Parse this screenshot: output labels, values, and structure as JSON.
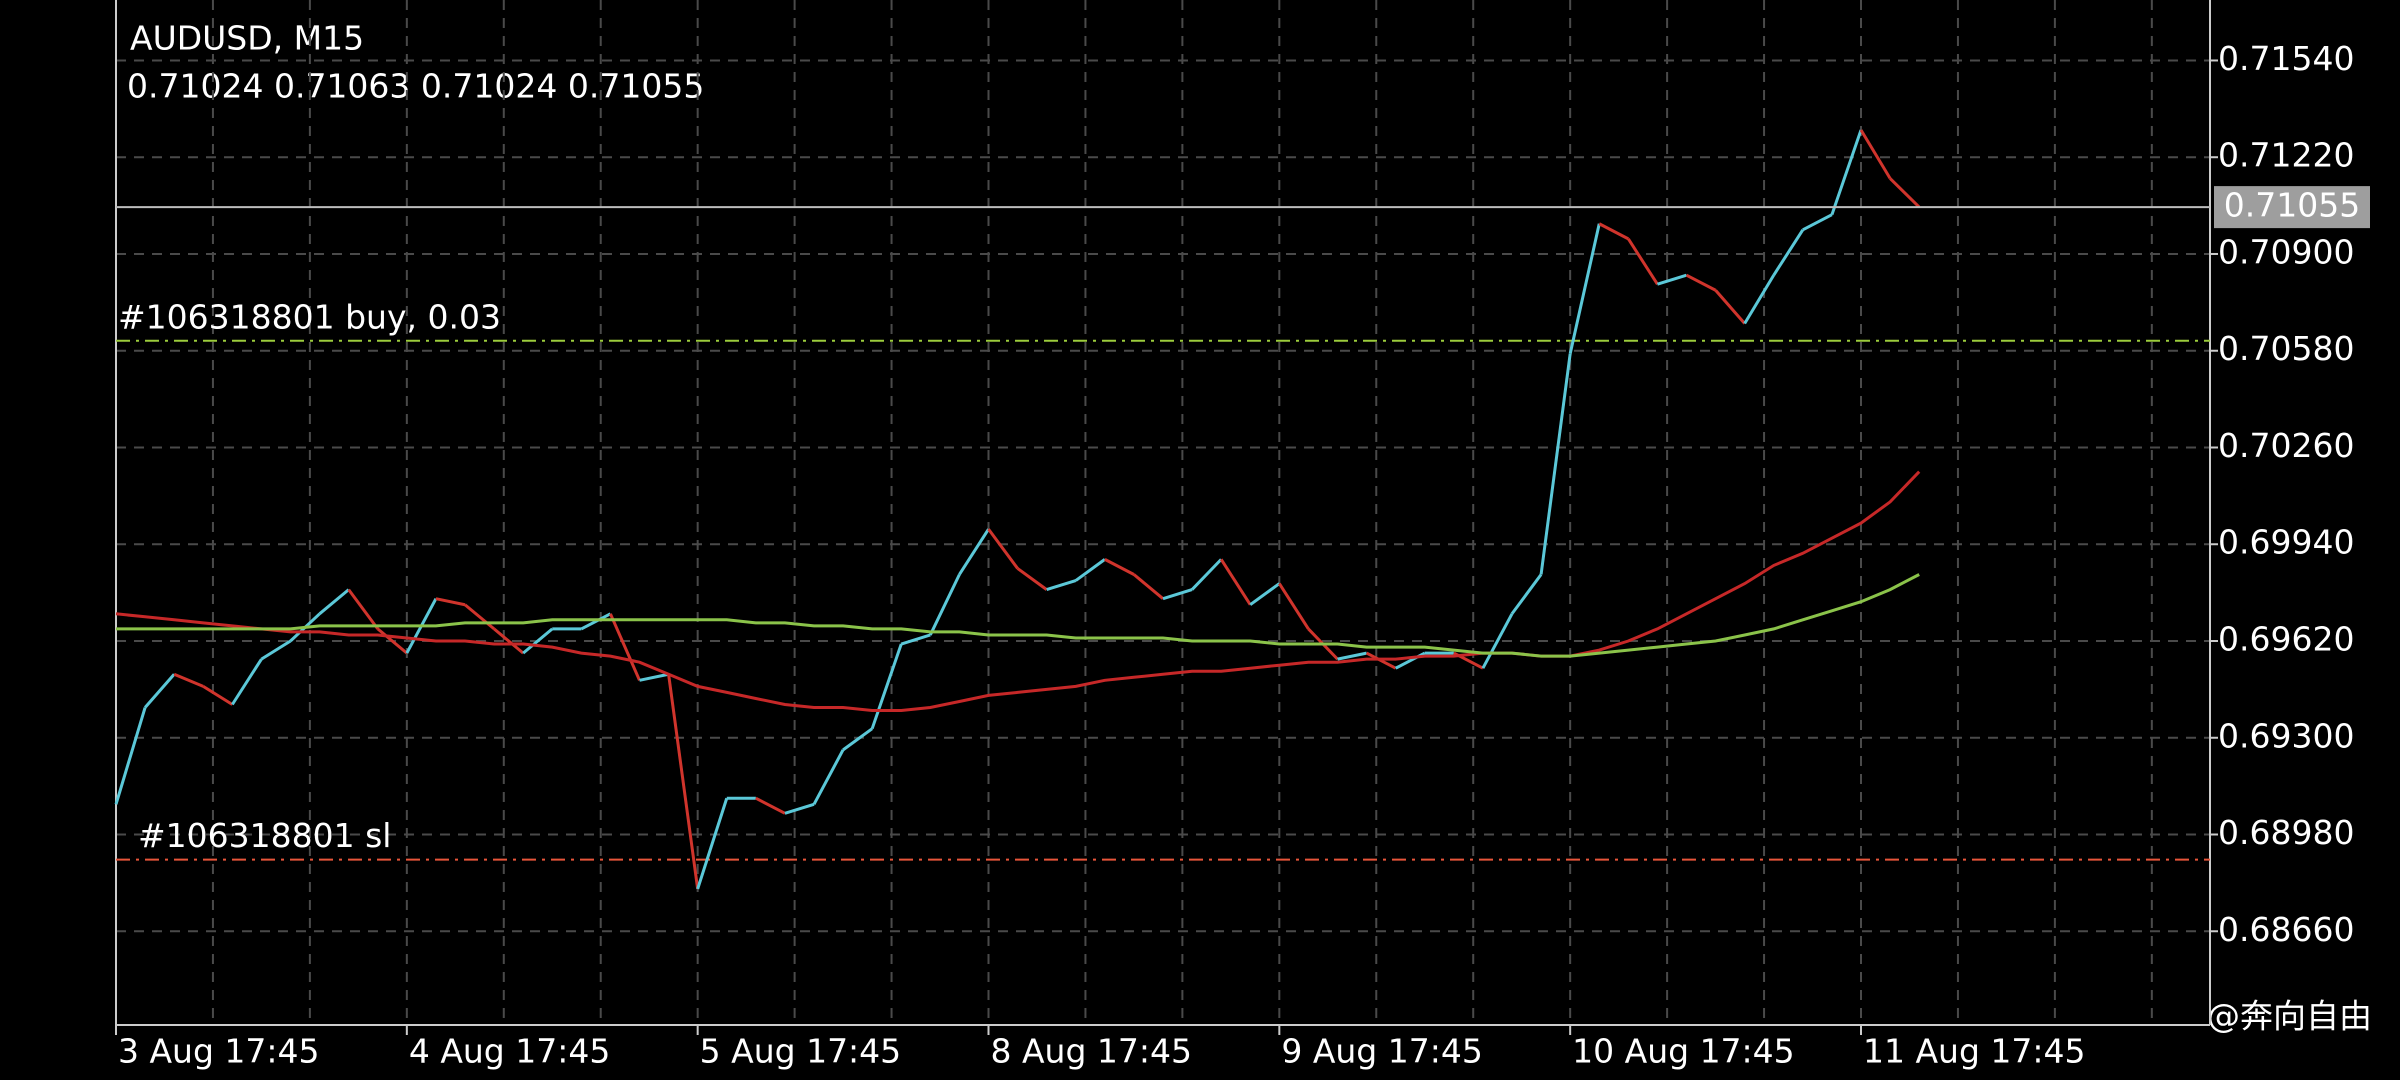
{
  "chart_data": {
    "type": "line",
    "title": "AUDUSD, M15",
    "subtitle": "0.71024 0.71063 0.71024 0.71055",
    "categories": [
      "3 Aug 17:45",
      null,
      null,
      null,
      null,
      null,
      null,
      null,
      null,
      null,
      "4 Aug 17:45",
      null,
      null,
      null,
      null,
      null,
      null,
      null,
      null,
      null,
      "5 Aug 17:45",
      null,
      null,
      null,
      null,
      null,
      null,
      null,
      null,
      null,
      "8 Aug 17:45",
      null,
      null,
      null,
      null,
      null,
      null,
      null,
      null,
      null,
      "9 Aug 17:45",
      null,
      null,
      null,
      null,
      null,
      null,
      null,
      null,
      null,
      "10 Aug 17:45",
      null,
      null,
      null,
      null,
      null,
      null,
      null,
      null,
      null,
      "11 Aug 17:45",
      null,
      null,
      null,
      null,
      null,
      null,
      null,
      null,
      null,
      null,
      null,
      null
    ],
    "series": [
      {
        "up_color": "#5bc8d8",
        "down_color": "#d0342c",
        "values": [
          0.6908,
          0.694,
          0.6951,
          0.6947,
          0.6941,
          0.6956,
          0.6962,
          0.6971,
          0.6979,
          0.6966,
          0.6958,
          0.6976,
          0.6974,
          0.6966,
          0.6958,
          0.6966,
          0.6966,
          0.6971,
          0.6949,
          0.6951,
          0.688,
          0.691,
          0.691,
          0.6905,
          0.6908,
          0.6926,
          0.6933,
          0.6961,
          0.6964,
          0.6984,
          0.6999,
          0.6986,
          0.6979,
          0.6982,
          0.6989,
          0.6984,
          0.6976,
          0.6979,
          0.6989,
          0.6974,
          0.6981,
          0.6966,
          0.6956,
          0.6958,
          0.6953,
          0.6958,
          0.6958,
          0.6953,
          0.6971,
          0.6984,
          0.7057,
          0.71,
          0.7095,
          0.708,
          0.7083,
          0.7078,
          0.7067,
          0.7083,
          0.7098,
          0.7103,
          0.7131,
          0.7115,
          0.71055,
          null,
          null,
          null,
          null,
          null,
          null,
          null,
          null,
          null,
          null
        ]
      },
      {
        "color": "#c62828",
        "values": [
          0.6971,
          0.697,
          0.6969,
          0.6968,
          0.6967,
          0.6966,
          0.6965,
          0.6965,
          0.6964,
          0.6964,
          0.6963,
          0.6962,
          0.6962,
          0.6961,
          0.6961,
          0.696,
          0.6958,
          0.6957,
          0.6955,
          0.6951,
          0.6947,
          0.6945,
          0.6943,
          0.6941,
          0.694,
          0.694,
          0.6939,
          0.6939,
          0.694,
          0.6942,
          0.6944,
          0.6945,
          0.6946,
          0.6947,
          0.6949,
          0.695,
          0.6951,
          0.6952,
          0.6952,
          0.6953,
          0.6954,
          0.6955,
          0.6955,
          0.6956,
          0.6956,
          0.6957,
          0.6957,
          0.6958,
          0.6958,
          0.6957,
          0.6957,
          0.6959,
          0.6962,
          0.6966,
          0.6971,
          0.6976,
          0.6981,
          0.6987,
          0.6991,
          0.6996,
          0.7001,
          0.7008,
          0.7018,
          null,
          null,
          null,
          null,
          null,
          null,
          null,
          null,
          null,
          null
        ]
      },
      {
        "color": "#8bc34a",
        "values": [
          0.6966,
          0.6966,
          0.6966,
          0.6966,
          0.6966,
          0.6966,
          0.6966,
          0.6967,
          0.6967,
          0.6967,
          0.6967,
          0.6967,
          0.6968,
          0.6968,
          0.6968,
          0.6969,
          0.6969,
          0.6969,
          0.6969,
          0.6969,
          0.6969,
          0.6969,
          0.6968,
          0.6968,
          0.6967,
          0.6967,
          0.6966,
          0.6966,
          0.6965,
          0.6965,
          0.6964,
          0.6964,
          0.6964,
          0.6963,
          0.6963,
          0.6963,
          0.6963,
          0.6962,
          0.6962,
          0.6962,
          0.6961,
          0.6961,
          0.6961,
          0.696,
          0.696,
          0.696,
          0.6959,
          0.6958,
          0.6958,
          0.6957,
          0.6957,
          0.6958,
          0.6959,
          0.696,
          0.6961,
          0.6962,
          0.6964,
          0.6966,
          0.6969,
          0.6972,
          0.6975,
          0.6979,
          0.6984,
          null,
          null,
          null,
          null,
          null,
          null,
          null,
          null,
          null,
          null
        ]
      }
    ],
    "ylim": [
      0.6835,
      0.7174
    ],
    "yticks": [
      {
        "value": 0.7154,
        "label": "0.71540"
      },
      {
        "value": 0.7122,
        "label": "0.71220"
      },
      {
        "value": 0.709,
        "label": "0.70900"
      },
      {
        "value": 0.7058,
        "label": "0.70580"
      },
      {
        "value": 0.7026,
        "label": "0.70260"
      },
      {
        "value": 0.6994,
        "label": "0.69940"
      },
      {
        "value": 0.6962,
        "label": "0.69620"
      },
      {
        "value": 0.693,
        "label": "0.69300"
      },
      {
        "value": 0.6898,
        "label": "0.68980"
      },
      {
        "value": 0.6866,
        "label": "0.68660"
      }
    ],
    "grid": true,
    "last_price": 0.71055,
    "annotations": [
      {
        "label": "#106318801 buy, 0.03",
        "value": 0.70613,
        "color": "#9ccc3c"
      },
      {
        "label": "#106318801 sl",
        "value": 0.68897,
        "color": "#e8553a"
      }
    ]
  },
  "watermark": "@奔向自由"
}
